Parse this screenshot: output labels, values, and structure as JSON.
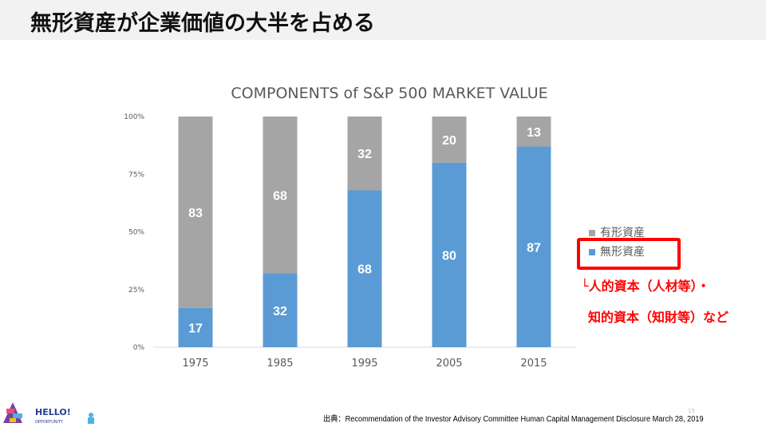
{
  "header": {
    "title": "無形資産が企業価値の大半を占める"
  },
  "chart_data": {
    "type": "bar",
    "stacked": true,
    "title": "COMPONENTS of S&P 500 MARKET VALUE",
    "categories": [
      "1975",
      "1985",
      "1995",
      "2005",
      "2015"
    ],
    "series": [
      {
        "name": "無形資産",
        "color": "#5b9bd5",
        "values": [
          17,
          32,
          68,
          80,
          87
        ]
      },
      {
        "name": "有形資産",
        "color": "#a5a5a5",
        "values": [
          83,
          68,
          32,
          20,
          13
        ]
      }
    ],
    "yticks": [
      "0%",
      "25%",
      "50%",
      "75%",
      "100%"
    ],
    "ylim": [
      0,
      100
    ],
    "legend": "right",
    "grid": false
  },
  "legend": {
    "tangible": "有形資産",
    "intangible": "無形資産"
  },
  "notes": {
    "line1": "└人的資本（人材等）・",
    "line2": "知的資本（知財等）など"
  },
  "footer": {
    "source": "出典：Recommendation of the Investor Advisory Committee Human Capital Management Disclosure March 28, 2019",
    "page": "15",
    "logo_text": "HELLO! OPPORTUNITY"
  }
}
